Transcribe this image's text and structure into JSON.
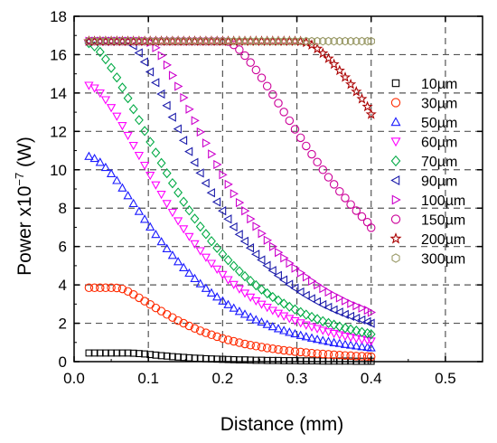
{
  "chart_data": {
    "type": "scatter",
    "title": "",
    "xlabel": "Distance (mm)",
    "ylabel": {
      "prefix": "Power x10",
      "exponent": "−7",
      "suffix": " (W)"
    },
    "xlim": [
      0.0,
      0.55
    ],
    "ylim": [
      0,
      18
    ],
    "xticks": [
      0.0,
      0.1,
      0.2,
      0.3,
      0.4,
      0.5
    ],
    "xtick_labels": [
      "0.0",
      "0.1",
      "0.2",
      "0.3",
      "0.4",
      "0.5"
    ],
    "yticks": [
      0,
      2,
      4,
      6,
      8,
      10,
      12,
      14,
      16,
      18
    ],
    "ytick_labels": [
      "0",
      "2",
      "4",
      "6",
      "8",
      "10",
      "12",
      "14",
      "16",
      "18"
    ],
    "grid": "dashed",
    "legend_position": "right",
    "x_points": [
      0.02,
      0.0275,
      0.035,
      0.0425,
      0.05,
      0.0575,
      0.065,
      0.0725,
      0.08,
      0.0875,
      0.095,
      0.1025,
      0.11,
      0.1175,
      0.125,
      0.1325,
      0.14,
      0.1475,
      0.155,
      0.1625,
      0.17,
      0.1775,
      0.185,
      0.1925,
      0.2,
      0.2075,
      0.215,
      0.2225,
      0.23,
      0.2375,
      0.245,
      0.2525,
      0.26,
      0.2675,
      0.275,
      0.2825,
      0.29,
      0.2975,
      0.305,
      0.3125,
      0.32,
      0.3275,
      0.335,
      0.3425,
      0.35,
      0.3575,
      0.365,
      0.3725,
      0.38,
      0.3875,
      0.395,
      0.4
    ],
    "series": [
      {
        "name": "10µm",
        "marker": "square",
        "color": "#000000",
        "y": [
          0.45,
          0.45,
          0.45,
          0.45,
          0.45,
          0.45,
          0.45,
          0.45,
          0.44,
          0.42,
          0.4,
          0.37,
          0.34,
          0.31,
          0.29,
          0.26,
          0.24,
          0.22,
          0.2,
          0.18,
          0.17,
          0.15,
          0.14,
          0.13,
          0.12,
          0.11,
          0.1,
          0.09,
          0.09,
          0.08,
          0.07,
          0.07,
          0.06,
          0.06,
          0.06,
          0.05,
          0.05,
          0.05,
          0.04,
          0.04,
          0.04,
          0.04,
          0.03,
          0.03,
          0.03,
          0.03,
          0.03,
          0.03,
          0.02,
          0.02,
          0.02,
          0.02
        ]
      },
      {
        "name": "30µm",
        "marker": "circle",
        "color": "#ff2a00",
        "y": [
          3.85,
          3.85,
          3.85,
          3.85,
          3.85,
          3.84,
          3.79,
          3.66,
          3.5,
          3.33,
          3.15,
          2.98,
          2.8,
          2.63,
          2.46,
          2.3,
          2.14,
          2.0,
          1.86,
          1.73,
          1.61,
          1.5,
          1.4,
          1.3,
          1.21,
          1.13,
          1.06,
          0.99,
          0.92,
          0.86,
          0.81,
          0.76,
          0.71,
          0.67,
          0.63,
          0.59,
          0.56,
          0.52,
          0.5,
          0.47,
          0.44,
          0.42,
          0.4,
          0.38,
          0.36,
          0.34,
          0.32,
          0.31,
          0.29,
          0.28,
          0.27,
          0.26
        ]
      },
      {
        "name": "50µm",
        "marker": "triangle-up",
        "color": "#1a1aff",
        "y": [
          10.7,
          10.59,
          10.39,
          10.12,
          9.8,
          9.44,
          9.05,
          8.65,
          8.24,
          7.83,
          7.42,
          7.02,
          6.63,
          6.25,
          5.89,
          5.54,
          5.21,
          4.9,
          4.61,
          4.33,
          4.06,
          3.82,
          3.58,
          3.37,
          3.16,
          2.97,
          2.79,
          2.62,
          2.47,
          2.32,
          2.18,
          2.06,
          1.94,
          1.82,
          1.72,
          1.62,
          1.53,
          1.45,
          1.37,
          1.3,
          1.23,
          1.16,
          1.1,
          1.05,
          0.99,
          0.95,
          0.9,
          0.86,
          0.82,
          0.78,
          0.75,
          0.72
        ]
      },
      {
        "name": "60µm",
        "marker": "triangle-down",
        "color": "#ff00ff",
        "y": [
          14.4,
          14.26,
          14.0,
          13.65,
          13.24,
          12.79,
          12.3,
          11.79,
          11.27,
          10.75,
          10.23,
          9.71,
          9.21,
          8.72,
          8.24,
          7.78,
          7.34,
          6.92,
          6.52,
          6.14,
          5.78,
          5.44,
          5.12,
          4.82,
          4.54,
          4.27,
          4.02,
          3.79,
          3.57,
          3.36,
          3.17,
          2.99,
          2.83,
          2.67,
          2.52,
          2.38,
          2.25,
          2.13,
          2.02,
          1.91,
          1.81,
          1.72,
          1.63,
          1.55,
          1.47,
          1.4,
          1.33,
          1.27,
          1.21,
          1.16,
          1.11,
          1.07
        ]
      },
      {
        "name": "70µm",
        "marker": "diamond",
        "color": "#00aa44",
        "y": [
          16.6,
          16.43,
          16.14,
          15.76,
          15.31,
          14.81,
          14.28,
          13.73,
          13.16,
          12.59,
          12.02,
          11.45,
          10.89,
          10.35,
          9.82,
          9.3,
          8.81,
          8.33,
          7.88,
          7.45,
          7.04,
          6.65,
          6.28,
          5.93,
          5.6,
          5.29,
          4.99,
          4.71,
          4.45,
          4.21,
          3.98,
          3.76,
          3.56,
          3.37,
          3.19,
          3.02,
          2.86,
          2.72,
          2.58,
          2.45,
          2.33,
          2.22,
          2.11,
          2.01,
          1.92,
          1.83,
          1.75,
          1.68,
          1.61,
          1.54,
          1.48,
          1.43
        ]
      },
      {
        "name": "90µm",
        "marker": "triangle-left",
        "color": "#1a1aaa",
        "y": [
          16.7,
          16.7,
          16.7,
          16.7,
          16.7,
          16.7,
          16.7,
          16.69,
          16.47,
          16.09,
          15.62,
          15.1,
          14.54,
          13.95,
          13.35,
          12.74,
          12.13,
          11.53,
          10.95,
          10.38,
          9.83,
          9.3,
          8.8,
          8.32,
          7.86,
          7.43,
          7.02,
          6.63,
          6.27,
          5.93,
          5.6,
          5.3,
          5.01,
          4.75,
          4.49,
          4.26,
          4.03,
          3.83,
          3.63,
          3.45,
          3.28,
          3.12,
          2.97,
          2.83,
          2.7,
          2.58,
          2.46,
          2.36,
          2.26,
          2.17,
          2.08,
          2.0
        ]
      },
      {
        "name": "100µm",
        "marker": "triangle-right",
        "color": "#cc00cc",
        "y": [
          16.7,
          16.7,
          16.7,
          16.7,
          16.7,
          16.7,
          16.7,
          16.7,
          16.7,
          16.7,
          16.7,
          16.64,
          16.36,
          15.95,
          15.46,
          14.92,
          14.35,
          13.76,
          13.16,
          12.56,
          11.97,
          11.39,
          10.82,
          10.27,
          9.74,
          9.24,
          8.75,
          8.29,
          7.86,
          7.44,
          7.05,
          6.68,
          6.33,
          6.0,
          5.69,
          5.4,
          5.13,
          4.87,
          4.63,
          4.41,
          4.2,
          4.0,
          3.81,
          3.63,
          3.47,
          3.32,
          3.17,
          3.03,
          2.91,
          2.79,
          2.68,
          2.57
        ]
      },
      {
        "name": "150µm",
        "marker": "circle",
        "color": "#cc0099",
        "y": [
          16.7,
          16.7,
          16.7,
          16.7,
          16.7,
          16.7,
          16.7,
          16.7,
          16.7,
          16.7,
          16.7,
          16.7,
          16.7,
          16.7,
          16.7,
          16.7,
          16.7,
          16.7,
          16.7,
          16.7,
          16.7,
          16.7,
          16.7,
          16.7,
          16.7,
          16.68,
          16.51,
          16.26,
          15.95,
          15.59,
          15.2,
          14.79,
          14.36,
          13.92,
          13.47,
          13.01,
          12.56,
          12.11,
          11.67,
          11.24,
          10.81,
          10.4,
          10.0,
          9.61,
          9.24,
          8.87,
          8.53,
          8.19,
          7.87,
          7.56,
          7.27,
          6.98
        ]
      },
      {
        "name": "200µm",
        "marker": "star",
        "color": "#aa0000",
        "y": [
          16.7,
          16.7,
          16.7,
          16.7,
          16.7,
          16.7,
          16.7,
          16.7,
          16.7,
          16.7,
          16.7,
          16.7,
          16.7,
          16.7,
          16.7,
          16.7,
          16.7,
          16.7,
          16.7,
          16.7,
          16.7,
          16.7,
          16.7,
          16.7,
          16.7,
          16.7,
          16.7,
          16.7,
          16.7,
          16.7,
          16.7,
          16.7,
          16.7,
          16.7,
          16.7,
          16.7,
          16.7,
          16.7,
          16.69,
          16.63,
          16.5,
          16.31,
          16.07,
          15.8,
          15.5,
          15.17,
          14.82,
          14.45,
          14.07,
          13.69,
          13.29,
          12.89
        ]
      },
      {
        "name": "300µm",
        "marker": "hexagon",
        "color": "#999966",
        "y": [
          16.7,
          16.7,
          16.7,
          16.7,
          16.7,
          16.7,
          16.7,
          16.7,
          16.7,
          16.7,
          16.7,
          16.7,
          16.7,
          16.7,
          16.7,
          16.7,
          16.7,
          16.7,
          16.7,
          16.7,
          16.7,
          16.7,
          16.7,
          16.7,
          16.7,
          16.7,
          16.7,
          16.7,
          16.7,
          16.7,
          16.7,
          16.7,
          16.7,
          16.7,
          16.7,
          16.7,
          16.7,
          16.7,
          16.7,
          16.7,
          16.7,
          16.7,
          16.7,
          16.7,
          16.7,
          16.7,
          16.7,
          16.7,
          16.7,
          16.7,
          16.7,
          16.7
        ]
      }
    ]
  }
}
